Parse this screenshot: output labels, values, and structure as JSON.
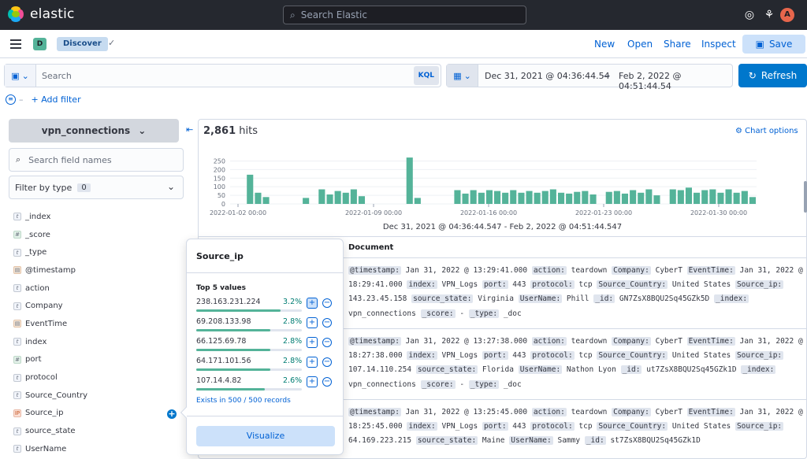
{
  "header": {
    "brand": "elastic",
    "search_placeholder": "Search Elastic",
    "avatar_initial": "A",
    "colors": {
      "bar_bg": "#25282f",
      "accent": "#0077cc",
      "histogram": "#54b399"
    }
  },
  "nav": {
    "space_badge": "D",
    "breadcrumb": "Discover",
    "links": [
      "New",
      "Open",
      "Share",
      "Inspect"
    ],
    "save_label": "Save"
  },
  "query": {
    "search_placeholder": "Search",
    "language": "KQL",
    "date_from": "Dec 31, 2021 @ 04:36:44.54",
    "date_arrow": "→",
    "date_to": "Feb 2, 2022 @ 04:51:44.54",
    "refresh_label": "Refresh",
    "add_filter": "+ Add filter"
  },
  "sidebar": {
    "index_pattern": "vpn_connections",
    "field_search_placeholder": "Search field names",
    "filter_by_type": "Filter by type",
    "filter_count": "0",
    "fields": [
      {
        "name": "_index",
        "type": "string",
        "glyph": "t"
      },
      {
        "name": "_score",
        "type": "number",
        "glyph": "#"
      },
      {
        "name": "_type",
        "type": "string",
        "glyph": "t"
      },
      {
        "name": "@timestamp",
        "type": "date",
        "glyph": "▤"
      },
      {
        "name": "action",
        "type": "string",
        "glyph": "t"
      },
      {
        "name": "Company",
        "type": "string",
        "glyph": "t"
      },
      {
        "name": "EventTime",
        "type": "date",
        "glyph": "▤"
      },
      {
        "name": "index",
        "type": "string",
        "glyph": "t"
      },
      {
        "name": "port",
        "type": "number",
        "glyph": "#"
      },
      {
        "name": "protocol",
        "type": "string",
        "glyph": "t"
      },
      {
        "name": "Source_Country",
        "type": "string",
        "glyph": "t"
      },
      {
        "name": "Source_ip",
        "type": "ip",
        "glyph": "IP"
      },
      {
        "name": "source_state",
        "type": "string",
        "glyph": "t"
      },
      {
        "name": "UserName",
        "type": "string",
        "glyph": "t"
      }
    ]
  },
  "popover": {
    "title": "Source_ip",
    "subtitle": "Top 5 values",
    "values": [
      {
        "value": "238.163.231.224",
        "percent": "3.2%",
        "fraction": 0.032
      },
      {
        "value": "69.208.133.98",
        "percent": "2.8%",
        "fraction": 0.028
      },
      {
        "value": "66.125.69.78",
        "percent": "2.8%",
        "fraction": 0.028
      },
      {
        "value": "64.171.101.56",
        "percent": "2.8%",
        "fraction": 0.028
      },
      {
        "value": "107.14.4.82",
        "percent": "2.6%",
        "fraction": 0.026
      }
    ],
    "exists_text": "Exists in 500 / 500 records",
    "visualize_label": "Visualize"
  },
  "results": {
    "hits_count": "2,861",
    "hits_label": "hits",
    "chart_options": "Chart options",
    "range_label": "Dec 31, 2021 @ 04:36:44.547 - Feb 2, 2022 @ 04:51:44.547",
    "document_header": "Document"
  },
  "chart_data": {
    "type": "bar",
    "y_ticks": [
      "250",
      "200",
      "150",
      "100",
      "50",
      "0"
    ],
    "ylim": [
      0,
      275
    ],
    "x_tick_labels": [
      "2022-01-02 00:00",
      "2022-01-09 00:00",
      "2022-01-16 00:00",
      "2022-01-23 00:00",
      "2022-01-30 00:00"
    ],
    "values": [
      0,
      0,
      170,
      65,
      40,
      0,
      0,
      0,
      0,
      35,
      0,
      85,
      55,
      75,
      65,
      85,
      45,
      0,
      0,
      0,
      0,
      0,
      270,
      35,
      0,
      0,
      0,
      0,
      80,
      60,
      80,
      65,
      80,
      75,
      65,
      80,
      65,
      75,
      65,
      75,
      85,
      65,
      60,
      70,
      75,
      55,
      0,
      70,
      75,
      60,
      80,
      65,
      85,
      50,
      0,
      85,
      80,
      95,
      65,
      80,
      85,
      65,
      85,
      65,
      75,
      40
    ]
  },
  "documents": [
    [
      [
        "@timestamp:",
        "Jan 31, 2022 @ 13:29:41.000"
      ],
      [
        "action:",
        "teardown"
      ],
      [
        "Company:",
        "CyberT"
      ],
      [
        "EventTime:",
        "Jan 31, 2022 @"
      ],
      [
        "",
        "18:29:41.000"
      ],
      [
        "index:",
        "VPN_Logs"
      ],
      [
        "port:",
        "443"
      ],
      [
        "protocol:",
        "tcp"
      ],
      [
        "Source_Country:",
        "United States"
      ],
      [
        "Source_ip:",
        "143.23.45.158"
      ],
      [
        "source_state:",
        "Virginia"
      ],
      [
        "UserName:",
        "Phill"
      ],
      [
        "_id:",
        "GN7ZsX8BQU2Sq45GZk5D"
      ],
      [
        "_index:",
        "vpn_connections"
      ],
      [
        "_score:",
        " - "
      ],
      [
        "_type:",
        "_doc"
      ]
    ],
    [
      [
        "@timestamp:",
        "Jan 31, 2022 @ 13:27:38.000"
      ],
      [
        "action:",
        "teardown"
      ],
      [
        "Company:",
        "CyberT"
      ],
      [
        "EventTime:",
        "Jan 31, 2022 @"
      ],
      [
        "",
        "18:27:38.000"
      ],
      [
        "index:",
        "VPN_Logs"
      ],
      [
        "port:",
        "443"
      ],
      [
        "protocol:",
        "tcp"
      ],
      [
        "Source_Country:",
        "United States"
      ],
      [
        "Source_ip:",
        "107.14.110.254"
      ],
      [
        "source_state:",
        "Florida"
      ],
      [
        "UserName:",
        "Nathon Lyon"
      ],
      [
        "_id:",
        "ut7ZsX8BQU2Sq45GZk1D"
      ],
      [
        "_index:",
        "vpn_connections"
      ],
      [
        "_score:",
        " - "
      ],
      [
        "_type:",
        "_doc"
      ]
    ],
    [
      [
        "@timestamp:",
        "Jan 31, 2022 @ 13:25:45.000"
      ],
      [
        "action:",
        "teardown"
      ],
      [
        "Company:",
        "CyberT"
      ],
      [
        "EventTime:",
        "Jan 31, 2022 @"
      ],
      [
        "",
        "18:25:45.000"
      ],
      [
        "index:",
        "VPN_Logs"
      ],
      [
        "port:",
        "443"
      ],
      [
        "protocol:",
        "tcp"
      ],
      [
        "Source_Country:",
        "United States"
      ],
      [
        "Source_ip:",
        "64.169.223.215"
      ],
      [
        "source_state:",
        "Maine"
      ],
      [
        "UserName:",
        "Sammy"
      ],
      [
        "_id:",
        "st7ZsX8BQU2Sq45GZk1D"
      ]
    ]
  ]
}
